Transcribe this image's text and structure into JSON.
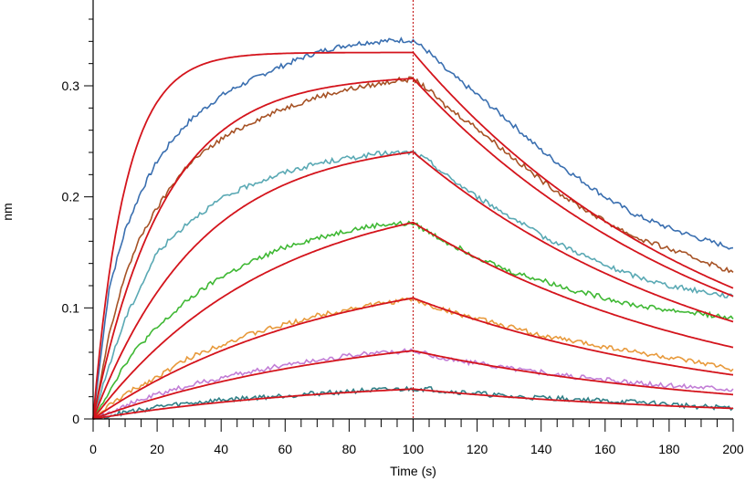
{
  "chart_data": {
    "type": "line",
    "xlabel": "Time (s)",
    "ylabel": "nm",
    "xlim": [
      0,
      200
    ],
    "ylim": [
      -0.004,
      0.38
    ],
    "x_ticks": [
      "0",
      "20",
      "40",
      "60",
      "80",
      "100",
      "120",
      "140",
      "160",
      "180",
      "200"
    ],
    "y_ticks": [
      "0",
      "0.1",
      "0.2",
      "0.3"
    ],
    "grid": false,
    "legend": "none",
    "event_line_x": 100,
    "series": [
      {
        "color": "#3a6fb0",
        "values": [
          [
            0,
            0
          ],
          [
            5,
            0.118
          ],
          [
            10,
            0.17
          ],
          [
            15,
            0.205
          ],
          [
            20,
            0.232
          ],
          [
            25,
            0.252
          ],
          [
            30,
            0.268
          ],
          [
            35,
            0.28
          ],
          [
            40,
            0.291
          ],
          [
            45,
            0.299
          ],
          [
            50,
            0.306
          ],
          [
            55,
            0.313
          ],
          [
            60,
            0.319
          ],
          [
            65,
            0.325
          ],
          [
            70,
            0.33
          ],
          [
            75,
            0.334
          ],
          [
            80,
            0.337
          ],
          [
            85,
            0.339
          ],
          [
            90,
            0.34
          ],
          [
            95,
            0.341
          ],
          [
            100,
            0.341
          ],
          [
            105,
            0.33
          ],
          [
            110,
            0.315
          ],
          [
            120,
            0.292
          ],
          [
            130,
            0.268
          ],
          [
            140,
            0.242
          ],
          [
            150,
            0.22
          ],
          [
            160,
            0.2
          ],
          [
            170,
            0.183
          ],
          [
            180,
            0.172
          ],
          [
            190,
            0.162
          ],
          [
            200,
            0.154
          ]
        ]
      },
      {
        "color": "#a65225",
        "values": [
          [
            0,
            0
          ],
          [
            5,
            0.075
          ],
          [
            10,
            0.13
          ],
          [
            15,
            0.165
          ],
          [
            20,
            0.19
          ],
          [
            25,
            0.212
          ],
          [
            30,
            0.23
          ],
          [
            40,
            0.252
          ],
          [
            50,
            0.268
          ],
          [
            60,
            0.28
          ],
          [
            70,
            0.29
          ],
          [
            80,
            0.297
          ],
          [
            90,
            0.302
          ],
          [
            95,
            0.305
          ],
          [
            100,
            0.306
          ],
          [
            105,
            0.296
          ],
          [
            110,
            0.282
          ],
          [
            120,
            0.262
          ],
          [
            130,
            0.238
          ],
          [
            140,
            0.215
          ],
          [
            150,
            0.195
          ],
          [
            160,
            0.178
          ],
          [
            170,
            0.163
          ],
          [
            180,
            0.153
          ],
          [
            190,
            0.143
          ],
          [
            200,
            0.132
          ]
        ]
      },
      {
        "color": "#5aa9b4",
        "values": [
          [
            0,
            0
          ],
          [
            5,
            0.048
          ],
          [
            10,
            0.09
          ],
          [
            15,
            0.12
          ],
          [
            20,
            0.15
          ],
          [
            30,
            0.178
          ],
          [
            40,
            0.198
          ],
          [
            50,
            0.212
          ],
          [
            60,
            0.222
          ],
          [
            70,
            0.23
          ],
          [
            80,
            0.235
          ],
          [
            90,
            0.239
          ],
          [
            100,
            0.24
          ],
          [
            105,
            0.232
          ],
          [
            110,
            0.22
          ],
          [
            120,
            0.2
          ],
          [
            130,
            0.183
          ],
          [
            140,
            0.165
          ],
          [
            150,
            0.152
          ],
          [
            160,
            0.138
          ],
          [
            170,
            0.128
          ],
          [
            180,
            0.12
          ],
          [
            190,
            0.115
          ],
          [
            200,
            0.11
          ]
        ]
      },
      {
        "color": "#3fb834",
        "values": [
          [
            0,
            0
          ],
          [
            5,
            0.025
          ],
          [
            10,
            0.05
          ],
          [
            15,
            0.068
          ],
          [
            20,
            0.082
          ],
          [
            30,
            0.108
          ],
          [
            40,
            0.128
          ],
          [
            50,
            0.142
          ],
          [
            60,
            0.155
          ],
          [
            70,
            0.163
          ],
          [
            80,
            0.17
          ],
          [
            90,
            0.175
          ],
          [
            100,
            0.176
          ],
          [
            105,
            0.168
          ],
          [
            110,
            0.16
          ],
          [
            120,
            0.146
          ],
          [
            130,
            0.133
          ],
          [
            140,
            0.125
          ],
          [
            150,
            0.116
          ],
          [
            160,
            0.109
          ],
          [
            170,
            0.102
          ],
          [
            180,
            0.098
          ],
          [
            190,
            0.095
          ],
          [
            200,
            0.09
          ]
        ]
      },
      {
        "color": "#e89a3c",
        "values": [
          [
            0,
            0
          ],
          [
            5,
            0.012
          ],
          [
            10,
            0.022
          ],
          [
            15,
            0.03
          ],
          [
            20,
            0.038
          ],
          [
            30,
            0.055
          ],
          [
            40,
            0.067
          ],
          [
            50,
            0.077
          ],
          [
            60,
            0.085
          ],
          [
            70,
            0.093
          ],
          [
            80,
            0.099
          ],
          [
            90,
            0.104
          ],
          [
            100,
            0.108
          ],
          [
            105,
            0.102
          ],
          [
            110,
            0.098
          ],
          [
            120,
            0.09
          ],
          [
            130,
            0.083
          ],
          [
            140,
            0.075
          ],
          [
            150,
            0.07
          ],
          [
            160,
            0.065
          ],
          [
            170,
            0.06
          ],
          [
            180,
            0.055
          ],
          [
            190,
            0.05
          ],
          [
            200,
            0.045
          ]
        ]
      },
      {
        "color": "#c27ed6",
        "values": [
          [
            0,
            0
          ],
          [
            5,
            0.006
          ],
          [
            10,
            0.012
          ],
          [
            15,
            0.017
          ],
          [
            20,
            0.022
          ],
          [
            30,
            0.03
          ],
          [
            40,
            0.037
          ],
          [
            50,
            0.043
          ],
          [
            60,
            0.049
          ],
          [
            70,
            0.053
          ],
          [
            80,
            0.057
          ],
          [
            90,
            0.06
          ],
          [
            100,
            0.061
          ],
          [
            105,
            0.058
          ],
          [
            110,
            0.054
          ],
          [
            120,
            0.05
          ],
          [
            130,
            0.046
          ],
          [
            140,
            0.042
          ],
          [
            150,
            0.038
          ],
          [
            160,
            0.035
          ],
          [
            170,
            0.032
          ],
          [
            180,
            0.03
          ],
          [
            190,
            0.029
          ],
          [
            200,
            0.027
          ]
        ]
      },
      {
        "color": "#2f7f86",
        "values": [
          [
            0,
            0
          ],
          [
            5,
            0.003
          ],
          [
            10,
            0.006
          ],
          [
            15,
            0.008
          ],
          [
            20,
            0.011
          ],
          [
            30,
            0.014
          ],
          [
            40,
            0.017
          ],
          [
            50,
            0.019
          ],
          [
            60,
            0.021
          ],
          [
            70,
            0.023
          ],
          [
            80,
            0.025
          ],
          [
            90,
            0.026
          ],
          [
            100,
            0.027
          ],
          [
            105,
            0.027
          ],
          [
            110,
            0.025
          ],
          [
            120,
            0.023
          ],
          [
            130,
            0.02
          ],
          [
            140,
            0.019
          ],
          [
            150,
            0.018
          ],
          [
            160,
            0.016
          ],
          [
            170,
            0.015
          ],
          [
            180,
            0.013
          ],
          [
            190,
            0.011
          ],
          [
            200,
            0.01
          ]
        ]
      }
    ],
    "fit": {
      "color": "#d4141c",
      "curves": [
        {
          "r_max": 0.33,
          "k_on": 0.1,
          "k_off": 0.0103
        },
        {
          "r_max": 0.31,
          "k_on": 0.045,
          "k_off": 0.0102
        },
        {
          "r_max": 0.253,
          "k_on": 0.03,
          "k_off": 0.0101
        },
        {
          "r_max": 0.212,
          "k_on": 0.018,
          "k_off": 0.0101
        },
        {
          "r_max": 0.147,
          "k_on": 0.0135,
          "k_off": 0.0101
        },
        {
          "r_max": 0.088,
          "k_on": 0.012,
          "k_off": 0.0103
        },
        {
          "r_max": 0.037,
          "k_on": 0.013,
          "k_off": 0.0104
        }
      ]
    }
  }
}
